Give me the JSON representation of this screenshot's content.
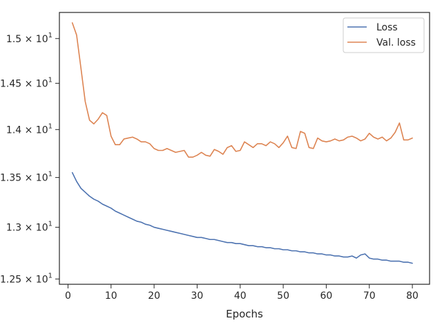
{
  "chart_data": {
    "type": "line",
    "title": "",
    "xlabel": "Epochs",
    "ylabel": "",
    "xlim": [
      -2,
      84
    ],
    "ylim": [
      12.45,
      15.3
    ],
    "y_scale": "log",
    "grid": false,
    "legend_placement": "top-right",
    "x_ticks": [
      0,
      10,
      20,
      30,
      40,
      50,
      60,
      70,
      80
    ],
    "x_tick_labels": [
      "0",
      "10",
      "20",
      "30",
      "40",
      "50",
      "60",
      "70",
      "80"
    ],
    "y_ticks": [
      {
        "value": 12.5,
        "mantissa": "1.25",
        "exponent": "1"
      },
      {
        "value": 13.0,
        "mantissa": "1.3",
        "exponent": "1"
      },
      {
        "value": 13.5,
        "mantissa": "1.35",
        "exponent": "1"
      },
      {
        "value": 14.0,
        "mantissa": "1.4",
        "exponent": "1"
      },
      {
        "value": 14.5,
        "mantissa": "1.45",
        "exponent": "1"
      },
      {
        "value": 15.0,
        "mantissa": "1.5",
        "exponent": "1"
      }
    ],
    "x": [
      1,
      2,
      3,
      4,
      5,
      6,
      7,
      8,
      9,
      10,
      11,
      12,
      13,
      14,
      15,
      16,
      17,
      18,
      19,
      20,
      21,
      22,
      23,
      24,
      25,
      26,
      27,
      28,
      29,
      30,
      31,
      32,
      33,
      34,
      35,
      36,
      37,
      38,
      39,
      40,
      41,
      42,
      43,
      44,
      45,
      46,
      47,
      48,
      49,
      50,
      51,
      52,
      53,
      54,
      55,
      56,
      57,
      58,
      59,
      60,
      61,
      62,
      63,
      64,
      65,
      66,
      67,
      68,
      69,
      70,
      71,
      72,
      73,
      74,
      75,
      76,
      77,
      78,
      79,
      80
    ],
    "series": [
      {
        "name": "Loss",
        "color": "#4c72b0",
        "values": [
          13.55,
          13.46,
          13.39,
          13.35,
          13.31,
          13.28,
          13.26,
          13.23,
          13.21,
          13.19,
          13.16,
          13.14,
          13.12,
          13.1,
          13.08,
          13.06,
          13.05,
          13.03,
          13.02,
          13.0,
          12.99,
          12.98,
          12.97,
          12.96,
          12.95,
          12.94,
          12.93,
          12.92,
          12.91,
          12.9,
          12.9,
          12.89,
          12.88,
          12.88,
          12.87,
          12.86,
          12.85,
          12.85,
          12.84,
          12.84,
          12.83,
          12.82,
          12.82,
          12.81,
          12.81,
          12.8,
          12.8,
          12.79,
          12.79,
          12.78,
          12.78,
          12.77,
          12.77,
          12.76,
          12.76,
          12.75,
          12.75,
          12.74,
          12.74,
          12.73,
          12.73,
          12.72,
          12.72,
          12.71,
          12.71,
          12.72,
          12.7,
          12.73,
          12.74,
          12.7,
          12.69,
          12.69,
          12.68,
          12.68,
          12.67,
          12.67,
          12.67,
          12.66,
          12.66,
          12.65
        ]
      },
      {
        "name": "Val. loss",
        "color": "#dd8452",
        "values": [
          15.18,
          15.04,
          14.67,
          14.3,
          14.1,
          14.06,
          14.11,
          14.18,
          14.15,
          13.93,
          13.84,
          13.84,
          13.9,
          13.91,
          13.92,
          13.9,
          13.87,
          13.87,
          13.85,
          13.8,
          13.78,
          13.78,
          13.8,
          13.78,
          13.76,
          13.77,
          13.78,
          13.71,
          13.71,
          13.73,
          13.76,
          13.73,
          13.72,
          13.79,
          13.77,
          13.74,
          13.81,
          13.83,
          13.77,
          13.78,
          13.87,
          13.84,
          13.81,
          13.85,
          13.85,
          13.83,
          13.87,
          13.85,
          13.81,
          13.86,
          13.93,
          13.81,
          13.8,
          13.98,
          13.96,
          13.81,
          13.8,
          13.91,
          13.88,
          13.87,
          13.88,
          13.9,
          13.88,
          13.89,
          13.92,
          13.93,
          13.91,
          13.88,
          13.9,
          13.96,
          13.92,
          13.9,
          13.92,
          13.88,
          13.91,
          13.97,
          14.07,
          13.89,
          13.89,
          13.91
        ]
      }
    ]
  }
}
